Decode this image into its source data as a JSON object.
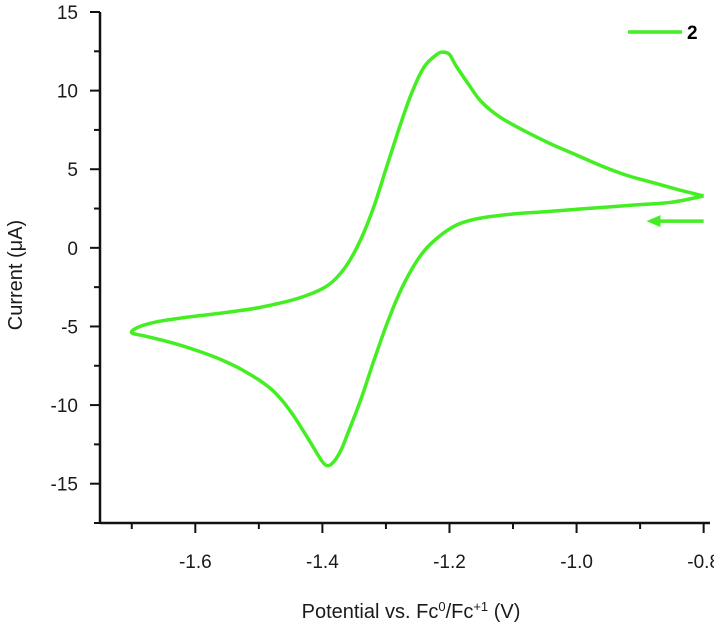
{
  "chart_data": {
    "type": "line",
    "xlabel_prefix": "Potential vs. Fc",
    "xlabel_sup1": "0",
    "xlabel_mid": "/Fc",
    "xlabel_sup2": "+1",
    "xlabel_suffix": " (V)",
    "ylabel": "Current (μA)",
    "xlim": [
      -1.75,
      -0.79
    ],
    "ylim": [
      -17.5,
      15
    ],
    "xticks": [
      -1.6,
      -1.4,
      -1.2,
      -1.0,
      -0.8
    ],
    "xtick_labels": [
      "-1.6",
      "-1.4",
      "-1.2",
      "-1.0",
      "-0.8"
    ],
    "yticks": [
      15,
      10,
      5,
      0,
      -5,
      -10,
      -15
    ],
    "ytick_labels": [
      "15",
      "10",
      "5",
      "0",
      "-5",
      "-10",
      "-15"
    ],
    "grid": false,
    "legend_position": "top-right",
    "series": [
      {
        "name": "2",
        "color": "#44ee22",
        "points": [
          [
            -0.8,
            3.3
          ],
          [
            -0.85,
            2.9
          ],
          [
            -0.9,
            2.75
          ],
          [
            -0.95,
            2.6
          ],
          [
            -1.0,
            2.45
          ],
          [
            -1.05,
            2.3
          ],
          [
            -1.1,
            2.15
          ],
          [
            -1.15,
            1.9
          ],
          [
            -1.18,
            1.6
          ],
          [
            -1.2,
            1.2
          ],
          [
            -1.22,
            0.6
          ],
          [
            -1.24,
            -0.2
          ],
          [
            -1.26,
            -1.4
          ],
          [
            -1.28,
            -3.0
          ],
          [
            -1.3,
            -5.0
          ],
          [
            -1.32,
            -7.3
          ],
          [
            -1.34,
            -9.7
          ],
          [
            -1.36,
            -11.8
          ],
          [
            -1.37,
            -12.8
          ],
          [
            -1.38,
            -13.5
          ],
          [
            -1.39,
            -13.85
          ],
          [
            -1.4,
            -13.6
          ],
          [
            -1.42,
            -12.3
          ],
          [
            -1.45,
            -10.4
          ],
          [
            -1.48,
            -9.0
          ],
          [
            -1.52,
            -7.9
          ],
          [
            -1.56,
            -7.1
          ],
          [
            -1.6,
            -6.5
          ],
          [
            -1.64,
            -6.0
          ],
          [
            -1.68,
            -5.6
          ],
          [
            -1.7,
            -5.4
          ],
          [
            -1.69,
            -5.05
          ],
          [
            -1.66,
            -4.7
          ],
          [
            -1.62,
            -4.45
          ],
          [
            -1.58,
            -4.25
          ],
          [
            -1.54,
            -4.05
          ],
          [
            -1.5,
            -3.8
          ],
          [
            -1.46,
            -3.45
          ],
          [
            -1.43,
            -3.1
          ],
          [
            -1.4,
            -2.6
          ],
          [
            -1.38,
            -2.0
          ],
          [
            -1.36,
            -1.0
          ],
          [
            -1.34,
            0.5
          ],
          [
            -1.32,
            2.5
          ],
          [
            -1.3,
            5.0
          ],
          [
            -1.28,
            7.5
          ],
          [
            -1.26,
            9.8
          ],
          [
            -1.24,
            11.5
          ],
          [
            -1.22,
            12.3
          ],
          [
            -1.21,
            12.45
          ],
          [
            -1.2,
            12.3
          ],
          [
            -1.19,
            11.6
          ],
          [
            -1.17,
            10.4
          ],
          [
            -1.15,
            9.3
          ],
          [
            -1.12,
            8.3
          ],
          [
            -1.08,
            7.4
          ],
          [
            -1.04,
            6.6
          ],
          [
            -1.0,
            5.9
          ],
          [
            -0.96,
            5.2
          ],
          [
            -0.92,
            4.6
          ],
          [
            -0.88,
            4.15
          ],
          [
            -0.84,
            3.7
          ],
          [
            -0.8,
            3.3
          ]
        ]
      }
    ],
    "annotation": "scan-direction-arrow",
    "arrow_from": [
      -0.8,
      1.7
    ],
    "arrow_to": [
      -0.89,
      1.7
    ]
  }
}
